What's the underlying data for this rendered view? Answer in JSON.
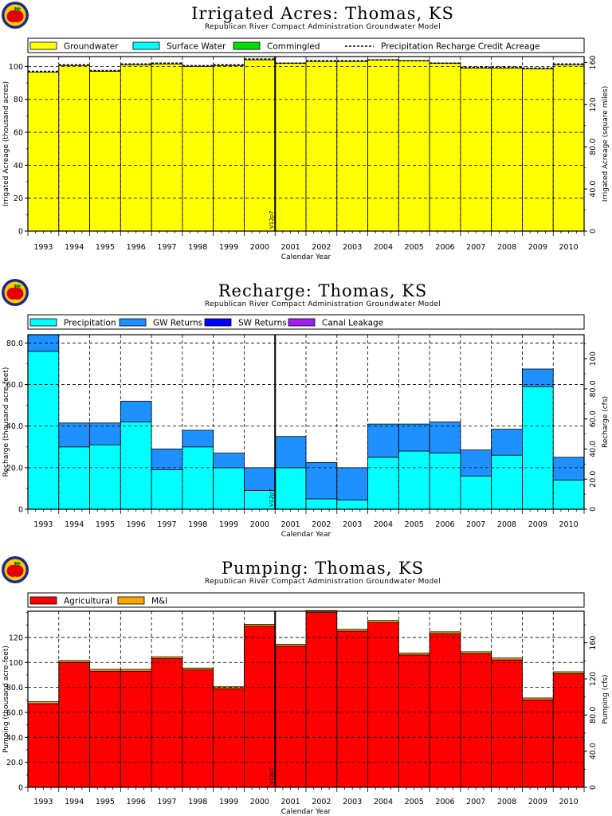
{
  "chart_data": [
    {
      "type": "bar",
      "title": "Irrigated Acres: Thomas, KS",
      "subtitle": "Republican River Compact Administration Groundwater Model",
      "xlabel": "Calendar Year",
      "ylabel": "Irrigated Acreage (thousand acres)",
      "ylabel_right": "Irrigated Acreage (square miles)",
      "ylim": [
        0,
        106
      ],
      "yticks": [
        0,
        20,
        40,
        60,
        80,
        100
      ],
      "yticks_labels": [
        "0",
        "20",
        "40",
        "60",
        "80",
        "100"
      ],
      "ylim_right": [
        0,
        165.6
      ],
      "yticks_right": [
        0,
        40,
        80,
        120,
        160
      ],
      "yticks_right_labels": [
        "0",
        "40.0",
        "80.0",
        "120",
        "160"
      ],
      "stacked": true,
      "categories": [
        "1993",
        "1994",
        "1995",
        "1996",
        "1997",
        "1998",
        "1999",
        "2000",
        "2001",
        "2002",
        "2003",
        "2004",
        "2005",
        "2006",
        "2007",
        "2008",
        "2009",
        "2010"
      ],
      "series": [
        {
          "name": "Groundwater",
          "color": "#ffff00",
          "values": [
            96.5,
            100.5,
            97,
            101,
            101.5,
            100,
            100.5,
            104,
            102,
            103,
            103,
            104,
            103.5,
            102,
            99,
            99,
            98.5,
            101
          ]
        },
        {
          "name": "Surface Water",
          "color": "#00ffff",
          "values": [
            0,
            0,
            0,
            0,
            0,
            0,
            0,
            0,
            0,
            0,
            0,
            0,
            0,
            0,
            0,
            0,
            0,
            0
          ]
        },
        {
          "name": "Commingled",
          "color": "#00dd00",
          "values": [
            0,
            0,
            0,
            0,
            0,
            0,
            0,
            0,
            0,
            0,
            0,
            0,
            0,
            0,
            0,
            0,
            0,
            0
          ]
        }
      ],
      "line_series": {
        "name": "Precipitation Recharge Credit Acreage",
        "values": [
          97,
          101,
          97.5,
          101.5,
          102,
          100.5,
          101,
          104.5,
          102,
          103.5,
          103.5,
          104,
          103.5,
          102,
          99.5,
          99.5,
          99,
          101.5
        ]
      },
      "vertical_marker": {
        "label": "V12p7"
      },
      "grid": true,
      "legend": "top"
    },
    {
      "type": "bar",
      "title": "Recharge: Thomas, KS",
      "subtitle": "Republican River Compact Administration Groundwater Model",
      "xlabel": "Calendar Year",
      "ylabel": "Recharge (thousand acre-feet)",
      "ylabel_right": "Recharge (cfs)",
      "ylim": [
        0,
        84
      ],
      "yticks": [
        0,
        20,
        40,
        60,
        80
      ],
      "yticks_labels": [
        "0",
        "20.0",
        "40.0",
        "60.0",
        "80.0"
      ],
      "ylim_right": [
        0,
        116
      ],
      "yticks_right": [
        0,
        20,
        40,
        60,
        80,
        100
      ],
      "yticks_right_labels": [
        "0",
        "20.0",
        "40.0",
        "60.0",
        "80.0",
        "100"
      ],
      "stacked": true,
      "categories": [
        "1993",
        "1994",
        "1995",
        "1996",
        "1997",
        "1998",
        "1999",
        "2000",
        "2001",
        "2002",
        "2003",
        "2004",
        "2005",
        "2006",
        "2007",
        "2008",
        "2009",
        "2010"
      ],
      "series": [
        {
          "name": "Precipitation",
          "color": "#00ffff",
          "values": [
            76,
            30,
            31,
            42,
            19,
            30,
            20,
            9,
            20,
            5,
            4.5,
            25,
            28,
            27,
            16,
            26,
            59,
            14
          ]
        },
        {
          "name": "GW Returns",
          "color": "#1e90ff",
          "values": [
            8,
            11.5,
            10.5,
            10,
            10,
            8,
            7,
            11,
            15,
            17.5,
            15.5,
            16,
            13,
            15,
            12.5,
            12.5,
            8.5,
            11
          ]
        },
        {
          "name": "SW Returns",
          "color": "#0000ff",
          "values": [
            0,
            0,
            0,
            0,
            0,
            0,
            0,
            0,
            0,
            0,
            0,
            0,
            0,
            0,
            0,
            0,
            0,
            0
          ]
        },
        {
          "name": "Canal Leakage",
          "color": "#a020f0",
          "values": [
            0,
            0,
            0,
            0,
            0,
            0,
            0,
            0,
            0,
            0,
            0,
            0,
            0,
            0,
            0,
            0,
            0,
            0
          ]
        }
      ],
      "vertical_marker": {
        "label": "V12p7"
      },
      "grid": true,
      "legend": "top"
    },
    {
      "type": "bar",
      "title": "Pumping: Thomas, KS",
      "subtitle": "Republican River Compact Administration Groundwater Model",
      "xlabel": "Calendar Year",
      "ylabel": "Pumping (thousand acre-feet)",
      "ylabel_right": "Pumping (cfs)",
      "ylim": [
        0,
        141
      ],
      "yticks": [
        0,
        20,
        40,
        60,
        80,
        100,
        120
      ],
      "yticks_labels": [
        "0",
        "20.0",
        "40.0",
        "60.0",
        "80.0",
        "100",
        "120"
      ],
      "ylim_right": [
        0,
        195
      ],
      "yticks_right": [
        0,
        40,
        80,
        120,
        160
      ],
      "yticks_right_labels": [
        "0",
        "40.0",
        "80.0",
        "120",
        "160"
      ],
      "stacked": true,
      "categories": [
        "1993",
        "1994",
        "1995",
        "1996",
        "1997",
        "1998",
        "1999",
        "2000",
        "2001",
        "2002",
        "2003",
        "2004",
        "2005",
        "2006",
        "2007",
        "2008",
        "2009",
        "2010"
      ],
      "series": [
        {
          "name": "Agricultural",
          "color": "#ff0000",
          "values": [
            67,
            100,
            93,
            93,
            103,
            94,
            79,
            129,
            113,
            140,
            125,
            132,
            106,
            123,
            107,
            102,
            70,
            91
          ]
        },
        {
          "name": "M&I",
          "color": "#ffa500",
          "values": [
            1.5,
            1.5,
            1.5,
            1.5,
            1.5,
            1.5,
            1.5,
            1.5,
            1.5,
            1.5,
            1.5,
            1.5,
            1.5,
            1.5,
            1.5,
            1.5,
            1.5,
            1.5
          ]
        }
      ],
      "vertical_marker": {
        "label": "V12p7"
      },
      "grid": true,
      "legend": "top"
    }
  ]
}
